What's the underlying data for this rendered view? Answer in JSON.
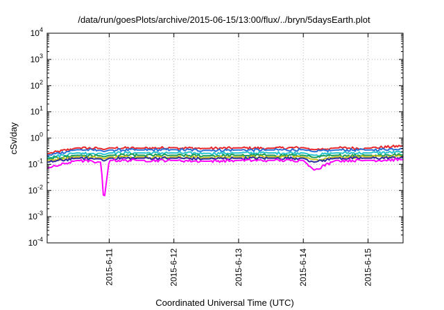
{
  "chart_data": {
    "type": "line",
    "title": "/data/run/goesPlots/archive/2015-06-15/13:00/flux/../bryn/5daysEarth.plot",
    "xlabel": "Coordinated Universal Time (UTC)",
    "ylabel": "cSv/day",
    "yscale": "log",
    "ylim": [
      0.0001,
      10000
    ],
    "xlim": [
      "2015-06-10T01:00",
      "2015-06-15T13:00"
    ],
    "grid": true,
    "x_ticks": [
      "2015-6-11",
      "2015-6-12",
      "2015-6-13",
      "2015-6-14",
      "2015-6-15"
    ],
    "y_ticks": [
      {
        "base": "10",
        "exp": "-4",
        "value": 0.0001
      },
      {
        "base": "10",
        "exp": "-3",
        "value": 0.001
      },
      {
        "base": "10",
        "exp": "-2",
        "value": 0.01
      },
      {
        "base": "10",
        "exp": "-1",
        "value": 0.1
      },
      {
        "base": "10",
        "exp": "0",
        "value": 1
      },
      {
        "base": "10",
        "exp": "1",
        "value": 10
      },
      {
        "base": "10",
        "exp": "2",
        "value": 100
      },
      {
        "base": "10",
        "exp": "3",
        "value": 1000
      },
      {
        "base": "10",
        "exp": "4",
        "value": 10000
      }
    ],
    "x": [
      "2015-06-10T01:00",
      "2015-06-10T12:00",
      "2015-06-10T21:00",
      "2015-06-10T22:00",
      "2015-06-11T00:00",
      "2015-06-11T12:00",
      "2015-06-12T00:00",
      "2015-06-12T12:00",
      "2015-06-13T00:00",
      "2015-06-13T12:00",
      "2015-06-14T00:00",
      "2015-06-14T04:00",
      "2015-06-14T12:00",
      "2015-06-15T00:00",
      "2015-06-15T13:00"
    ],
    "series": [
      {
        "color": "#e8262a",
        "values": [
          0.25,
          0.42,
          0.4,
          0.36,
          0.42,
          0.41,
          0.43,
          0.4,
          0.42,
          0.41,
          0.43,
          0.36,
          0.42,
          0.41,
          0.5
        ]
      },
      {
        "color": "#2a6fd6",
        "values": [
          0.22,
          0.36,
          0.34,
          0.3,
          0.35,
          0.35,
          0.36,
          0.34,
          0.35,
          0.35,
          0.36,
          0.3,
          0.35,
          0.35,
          0.4
        ]
      },
      {
        "color": "#29c4d0",
        "values": [
          0.18,
          0.27,
          0.26,
          0.23,
          0.27,
          0.27,
          0.27,
          0.26,
          0.27,
          0.27,
          0.27,
          0.22,
          0.27,
          0.27,
          0.29
        ]
      },
      {
        "color": "#1a9b55",
        "values": [
          0.16,
          0.22,
          0.21,
          0.19,
          0.22,
          0.22,
          0.22,
          0.21,
          0.22,
          0.22,
          0.22,
          0.18,
          0.22,
          0.22,
          0.23
        ]
      },
      {
        "color": "#c8c020",
        "values": [
          0.14,
          0.19,
          0.18,
          0.16,
          0.19,
          0.19,
          0.19,
          0.18,
          0.19,
          0.19,
          0.19,
          0.15,
          0.19,
          0.19,
          0.2
        ]
      },
      {
        "color": "#2b2f9e",
        "values": [
          0.12,
          0.17,
          0.16,
          0.13,
          0.17,
          0.17,
          0.17,
          0.16,
          0.17,
          0.17,
          0.17,
          0.12,
          0.17,
          0.17,
          0.18
        ]
      },
      {
        "color": "#ff00ff",
        "values": [
          0.07,
          0.14,
          0.12,
          0.0035,
          0.14,
          0.14,
          0.14,
          0.13,
          0.14,
          0.14,
          0.14,
          0.06,
          0.14,
          0.14,
          0.15
        ]
      }
    ]
  }
}
